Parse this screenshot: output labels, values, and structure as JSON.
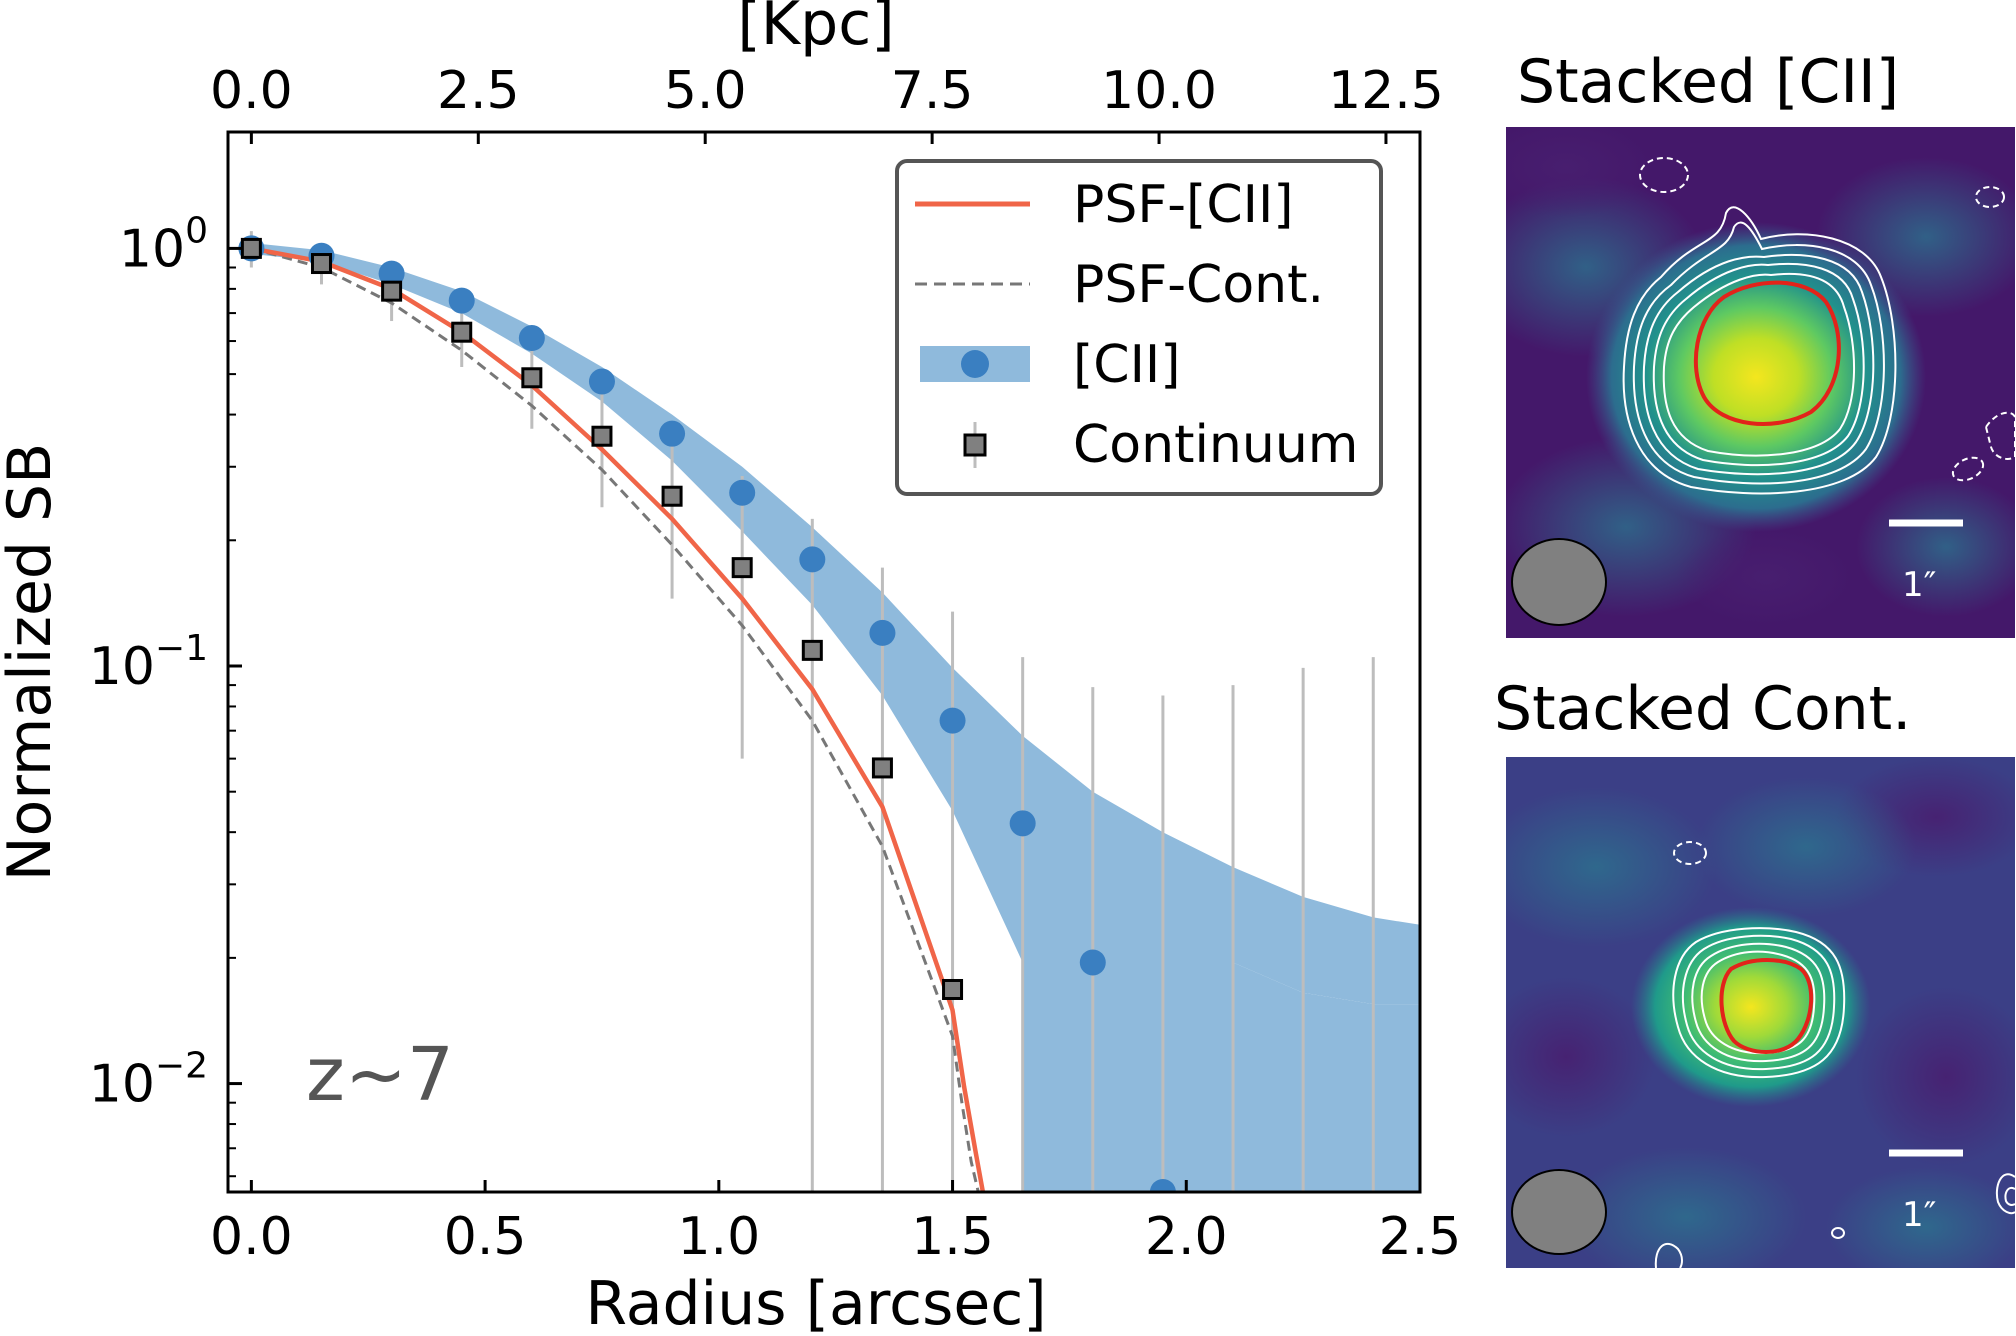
{
  "chart_data": [
    {
      "type": "line",
      "xlabel": "Radius [arcsec]",
      "x2label": "[Kpc]",
      "ylabel": "Normalized SB",
      "yscale": "log",
      "xlim": [
        -0.05,
        2.5
      ],
      "ylim": [
        0.0055,
        1.9
      ],
      "x_ticks": [
        "0.0",
        "0.5",
        "1.0",
        "1.5",
        "2.0",
        "2.5"
      ],
      "x_tick_values": [
        0.0,
        0.5,
        1.0,
        1.5,
        2.0,
        2.5
      ],
      "x2_ticks": [
        "0.0",
        "2.5",
        "5.0",
        "7.5",
        "10.0",
        "12.5"
      ],
      "x2_tick_values": [
        0.0,
        2.5,
        5.0,
        7.5,
        10.0,
        12.5
      ],
      "kpc_per_arcsec": 5.15,
      "y_ticks": [
        {
          "value": 1,
          "base": "10",
          "exp": "0"
        },
        {
          "value": 0.1,
          "base": "10",
          "exp": "−1"
        },
        {
          "value": 0.01,
          "base": "10",
          "exp": "−2"
        }
      ],
      "annotation": "z~7",
      "legend": {
        "position": "top-right",
        "entries": [
          "PSF-[CII]",
          "PSF-Cont.",
          "[CII]",
          "Continuum"
        ]
      },
      "colors": {
        "psf_cii": "#f06548",
        "psf_cont": "#777777",
        "cii_points": "#3a7fc1",
        "cii_band": "#8fbadc",
        "continuum_fill": "#808080",
        "errorbar": "#bdbdbd"
      },
      "series": [
        {
          "name": "PSF-[CII]",
          "style": "solid",
          "x": [
            0.0,
            0.15,
            0.3,
            0.45,
            0.6,
            0.75,
            0.9,
            1.05,
            1.2,
            1.35,
            1.5,
            1.525,
            1.55,
            1.565
          ],
          "y": [
            1.0,
            0.93,
            0.8,
            0.63,
            0.47,
            0.33,
            0.225,
            0.145,
            0.088,
            0.046,
            0.015,
            0.0098,
            0.0068,
            0.0055
          ]
        },
        {
          "name": "PSF-Cont.",
          "style": "dashed",
          "x": [
            0.0,
            0.15,
            0.3,
            0.45,
            0.6,
            0.75,
            0.9,
            1.05,
            1.2,
            1.35,
            1.5,
            1.52,
            1.54,
            1.555
          ],
          "y": [
            1.0,
            0.9,
            0.74,
            0.57,
            0.42,
            0.295,
            0.195,
            0.125,
            0.074,
            0.037,
            0.013,
            0.009,
            0.0065,
            0.0055
          ]
        },
        {
          "name": "[CII]",
          "x": [
            0.0,
            0.15,
            0.3,
            0.45,
            0.6,
            0.75,
            0.9,
            1.05,
            1.2,
            1.35,
            1.5,
            1.65,
            1.8,
            1.95
          ],
          "y": [
            1.0,
            0.96,
            0.87,
            0.75,
            0.61,
            0.48,
            0.36,
            0.26,
            0.18,
            0.12,
            0.074,
            0.042,
            0.0195,
            0.0055
          ]
        },
        {
          "name": "[CII] band",
          "x": [
            0.0,
            0.15,
            0.3,
            0.45,
            0.6,
            0.75,
            0.9,
            1.05,
            1.2,
            1.35,
            1.5,
            1.65,
            1.8,
            1.95,
            2.1,
            2.25,
            2.4,
            2.5
          ],
          "upper": [
            1.03,
            0.99,
            0.9,
            0.79,
            0.65,
            0.52,
            0.4,
            0.3,
            0.215,
            0.15,
            0.099,
            0.068,
            0.05,
            0.04,
            0.033,
            0.028,
            0.025,
            0.024
          ],
          "lower": [
            0.97,
            0.93,
            0.82,
            0.7,
            0.56,
            0.43,
            0.31,
            0.21,
            0.14,
            0.085,
            0.045,
            0.0195,
            0.0195,
            0.0195,
            0.0195,
            0.0165,
            0.0155,
            0.0155
          ]
        },
        {
          "name": "Continuum",
          "x": [
            0.0,
            0.15,
            0.3,
            0.45,
            0.6,
            0.75,
            0.9,
            1.05,
            1.2,
            1.35,
            1.5
          ],
          "y": [
            1.0,
            0.92,
            0.79,
            0.63,
            0.49,
            0.355,
            0.255,
            0.172,
            0.109,
            0.057,
            0.0168
          ],
          "err_low": [
            0.9,
            0.82,
            0.67,
            0.52,
            0.37,
            0.24,
            0.145,
            0.06,
            0.0055,
            0.0055,
            0.0055
          ],
          "err_high": [
            1.1,
            1.02,
            0.91,
            0.74,
            0.62,
            0.47,
            0.37,
            0.285,
            0.225,
            0.172,
            0.135
          ],
          "extra_errorbars": [
            {
              "x": 1.65,
              "high": 0.105
            },
            {
              "x": 1.8,
              "high": 0.089
            },
            {
              "x": 1.95,
              "high": 0.085
            },
            {
              "x": 2.1,
              "high": 0.09
            },
            {
              "x": 2.25,
              "high": 0.099
            },
            {
              "x": 2.4,
              "high": 0.105
            }
          ]
        }
      ]
    },
    {
      "type": "heatmap",
      "title": "Stacked [CII]",
      "scale_bar_label": "1″"
    },
    {
      "type": "heatmap",
      "title": "Stacked Cont.",
      "scale_bar_label": "1″"
    }
  ]
}
